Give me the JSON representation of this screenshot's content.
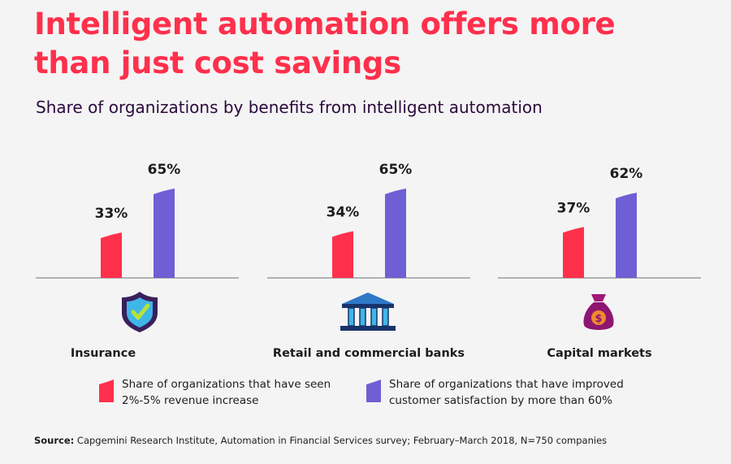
{
  "header": {
    "title": "Intelligent automation offers more than just cost savings",
    "subtitle": "Share of organizations by benefits from intelligent automation"
  },
  "chart_data": {
    "type": "bar",
    "categories": [
      "Insurance",
      "Retail and commercial banks",
      "Capital markets"
    ],
    "category_icons": [
      "shield-check-icon",
      "bank-icon",
      "money-bag-icon"
    ],
    "series": [
      {
        "name": "Share of organizations that have seen 2%-5% revenue increase",
        "values": [
          33,
          34,
          37
        ],
        "labels": [
          "33%",
          "34%",
          "37%"
        ],
        "color": "#ff304c"
      },
      {
        "name": "Share of organizations that have improved customer satisfaction by more than 60%",
        "values": [
          65,
          65,
          62
        ],
        "labels": [
          "65%",
          "65%",
          "62%"
        ],
        "color": "#6e5fd4"
      }
    ],
    "ylim": [
      0,
      100
    ],
    "grid": false,
    "legend_position": "bottom"
  },
  "legend": {
    "item1_line1": "Share of organizations that have seen",
    "item1_line2": "2%-5% revenue increase",
    "item2_line1": "Share of organizations that have improved",
    "item2_line2": "customer satisfaction by more than 60%"
  },
  "source": {
    "label": "Source:",
    "text": " Capgemini Research Institute, Automation in Financial Services survey; February–March 2018, N=750 companies"
  },
  "colors": {
    "accent": "#ff304c",
    "purple": "#6e5fd4",
    "dark": "#2b0a3d"
  }
}
